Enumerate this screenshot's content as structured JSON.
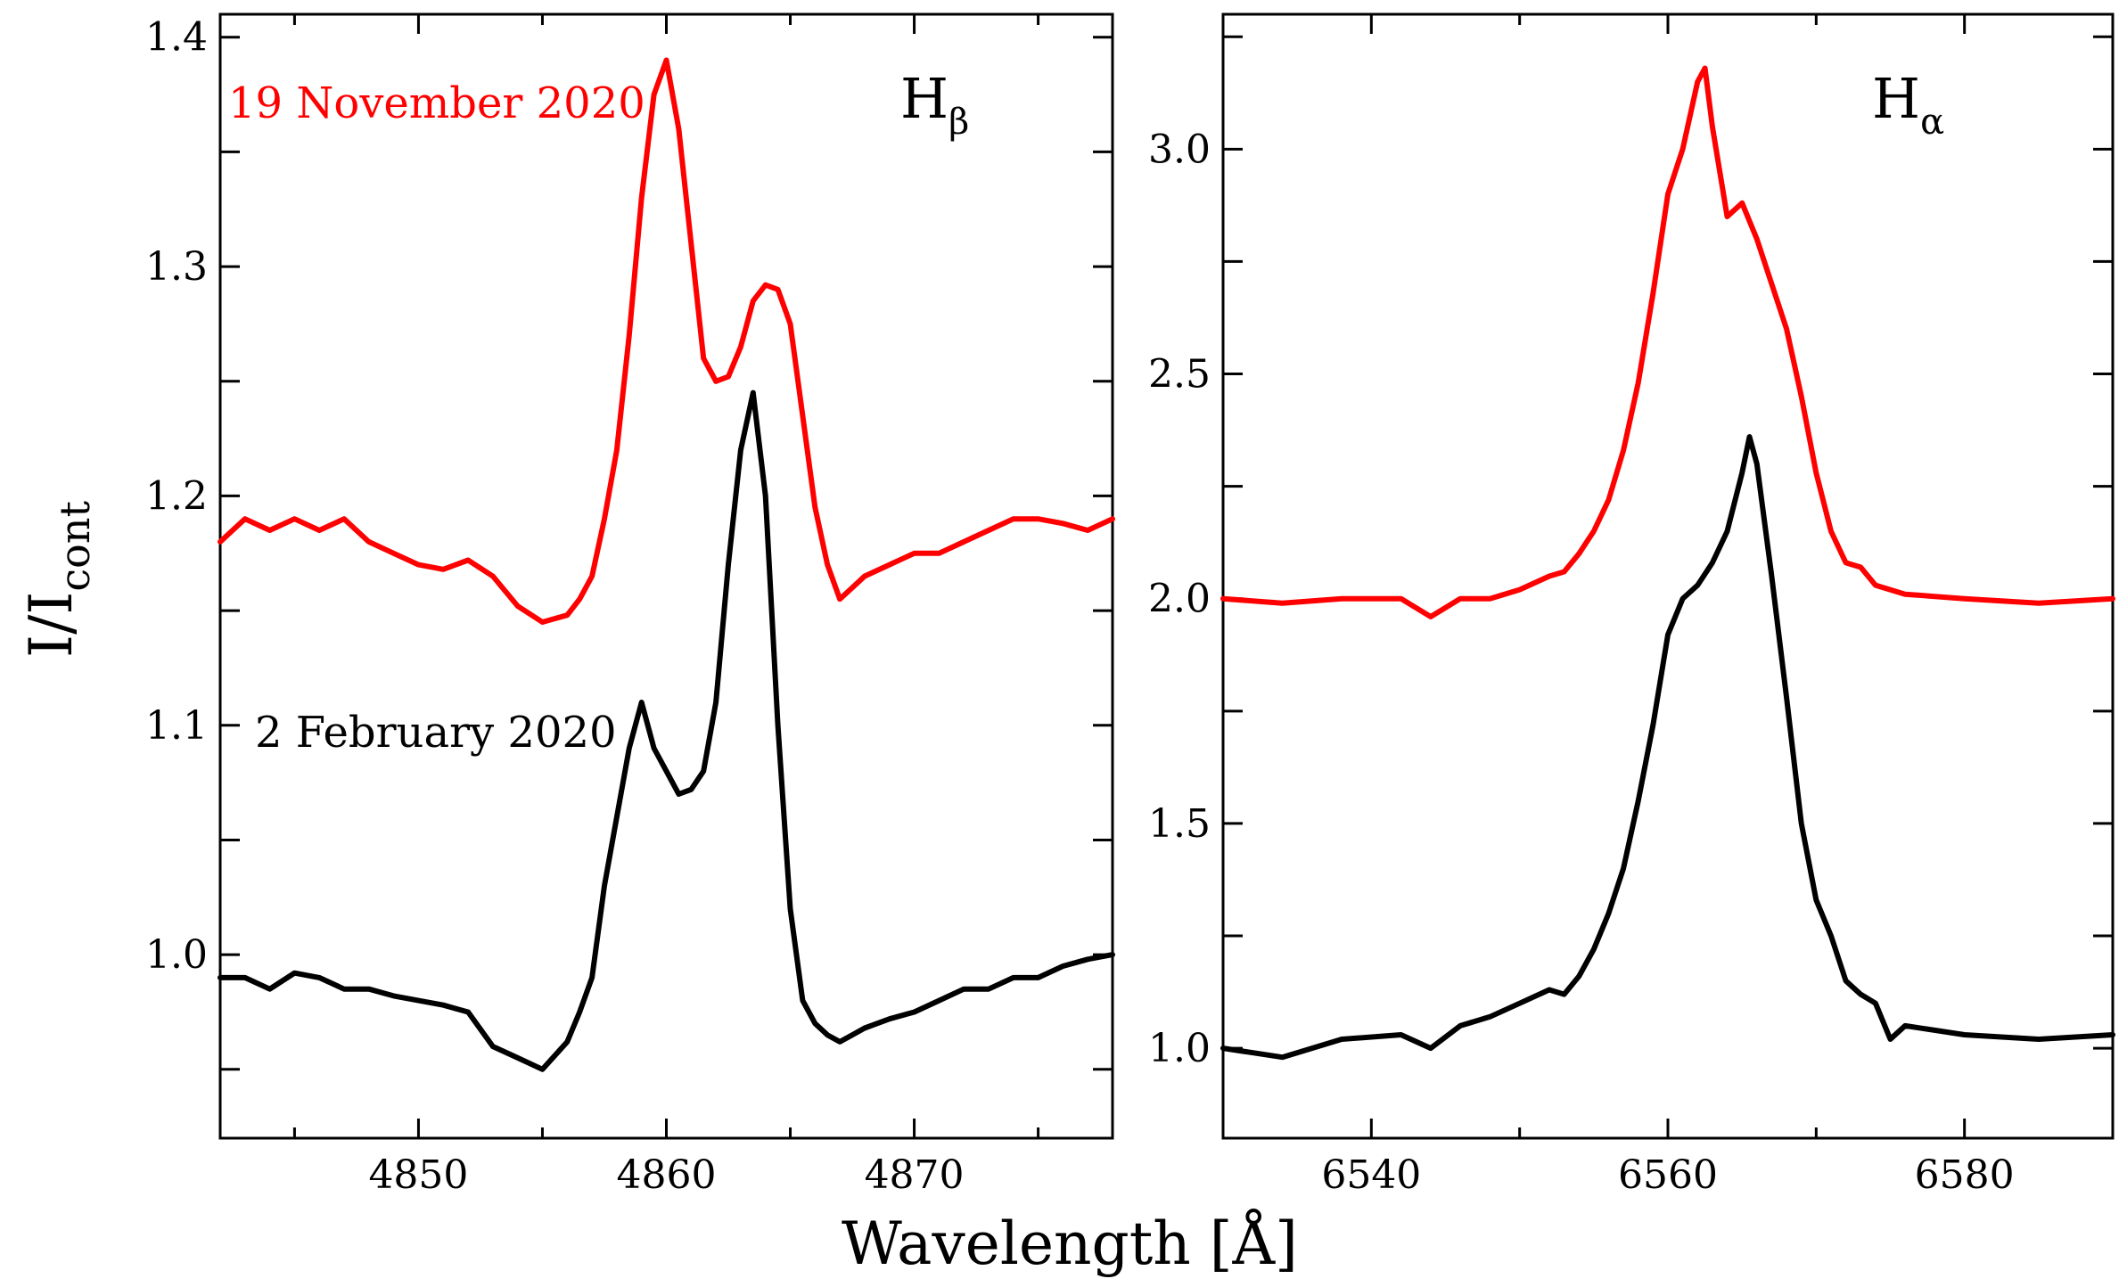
{
  "chart_data": [
    {
      "type": "line",
      "panel": "left",
      "title": "Hβ",
      "title_main": "H",
      "title_sub": "β",
      "xlabel": "Wavelength [Å]",
      "ylabel": "I/Icont",
      "ylabel_main": "I/I",
      "ylabel_sub": "cont",
      "xlim": [
        4842,
        4878
      ],
      "ylim": [
        0.92,
        1.41
      ],
      "xticks": [
        4850,
        4860,
        4870
      ],
      "xtick_labels": [
        "4850",
        "4860",
        "4870"
      ],
      "yticks": [
        1.0,
        1.1,
        1.2,
        1.3,
        1.4
      ],
      "ytick_labels": [
        "1.0",
        "1.1",
        "1.2",
        "1.3",
        "1.4"
      ],
      "grid": false,
      "series": [
        {
          "name": "19 November 2020",
          "color": "#ff0000",
          "x": [
            4842,
            4843,
            4844,
            4845,
            4846,
            4847,
            4848,
            4849,
            4850,
            4851,
            4852,
            4853,
            4854,
            4855,
            4856,
            4856.5,
            4857,
            4857.5,
            4858,
            4858.5,
            4859,
            4859.5,
            4860,
            4860.5,
            4861,
            4861.5,
            4862,
            4862.5,
            4863,
            4863.5,
            4864,
            4864.5,
            4865,
            4865.5,
            4866,
            4866.5,
            4867,
            4867.5,
            4868,
            4869,
            4870,
            4871,
            4872,
            4873,
            4874,
            4875,
            4876,
            4877,
            4878
          ],
          "y": [
            1.18,
            1.19,
            1.185,
            1.19,
            1.185,
            1.19,
            1.18,
            1.175,
            1.17,
            1.168,
            1.172,
            1.165,
            1.152,
            1.145,
            1.148,
            1.155,
            1.165,
            1.19,
            1.22,
            1.27,
            1.33,
            1.375,
            1.39,
            1.36,
            1.31,
            1.26,
            1.25,
            1.252,
            1.265,
            1.285,
            1.292,
            1.29,
            1.275,
            1.235,
            1.195,
            1.17,
            1.155,
            1.16,
            1.165,
            1.17,
            1.175,
            1.175,
            1.18,
            1.185,
            1.19,
            1.19,
            1.188,
            1.185,
            1.19
          ]
        },
        {
          "name": "2 February 2020",
          "color": "#000000",
          "x": [
            4842,
            4843,
            4844,
            4845,
            4846,
            4847,
            4848,
            4849,
            4850,
            4851,
            4852,
            4853,
            4854,
            4855,
            4856,
            4856.5,
            4857,
            4857.5,
            4858,
            4858.5,
            4859,
            4859.5,
            4860,
            4860.5,
            4861,
            4861.5,
            4862,
            4862.5,
            4863,
            4863.5,
            4864,
            4864.5,
            4865,
            4865.5,
            4866,
            4866.5,
            4867,
            4867.5,
            4868,
            4869,
            4870,
            4871,
            4872,
            4873,
            4874,
            4875,
            4876,
            4877,
            4878
          ],
          "y": [
            0.99,
            0.99,
            0.985,
            0.992,
            0.99,
            0.985,
            0.985,
            0.982,
            0.98,
            0.978,
            0.975,
            0.96,
            0.955,
            0.95,
            0.962,
            0.975,
            0.99,
            1.03,
            1.06,
            1.09,
            1.11,
            1.09,
            1.08,
            1.07,
            1.072,
            1.08,
            1.11,
            1.17,
            1.22,
            1.245,
            1.2,
            1.1,
            1.02,
            0.98,
            0.97,
            0.965,
            0.962,
            0.965,
            0.968,
            0.972,
            0.975,
            0.98,
            0.985,
            0.985,
            0.99,
            0.99,
            0.995,
            0.998,
            1.0
          ]
        }
      ]
    },
    {
      "type": "line",
      "panel": "right",
      "title": "Hα",
      "title_main": "H",
      "title_sub": "α",
      "xlim": [
        6530,
        6590
      ],
      "ylim": [
        0.8,
        3.3
      ],
      "xticks": [
        6540,
        6560,
        6580
      ],
      "xtick_labels": [
        "6540",
        "6560",
        "6580"
      ],
      "yticks": [
        1.0,
        1.5,
        2.0,
        2.5,
        3.0
      ],
      "ytick_labels": [
        "1.0",
        "1.5",
        "2.0",
        "2.5",
        "3.0"
      ],
      "grid": false,
      "series": [
        {
          "name": "19 November 2020",
          "color": "#ff0000",
          "x": [
            6530,
            6534,
            6538,
            6542,
            6544,
            6546,
            6548,
            6550,
            6552,
            6553,
            6554,
            6555,
            6556,
            6557,
            6558,
            6559,
            6560,
            6561,
            6562,
            6562.5,
            6563,
            6564,
            6565,
            6566,
            6567,
            6568,
            6569,
            6570,
            6571,
            6572,
            6573,
            6574,
            6576,
            6580,
            6585,
            6590
          ],
          "y": [
            2.0,
            1.99,
            2.0,
            2.0,
            1.96,
            2.0,
            2.0,
            2.02,
            2.05,
            2.06,
            2.1,
            2.15,
            2.22,
            2.33,
            2.48,
            2.68,
            2.9,
            3.0,
            3.15,
            3.18,
            3.05,
            2.85,
            2.88,
            2.8,
            2.7,
            2.6,
            2.45,
            2.28,
            2.15,
            2.08,
            2.07,
            2.03,
            2.01,
            2.0,
            1.99,
            2.0
          ]
        },
        {
          "name": "2 February 2020",
          "color": "#000000",
          "x": [
            6530,
            6534,
            6538,
            6542,
            6544,
            6546,
            6548,
            6550,
            6552,
            6553,
            6554,
            6555,
            6556,
            6557,
            6558,
            6559,
            6560,
            6561,
            6562,
            6563,
            6564,
            6565,
            6565.5,
            6566,
            6567,
            6568,
            6569,
            6570,
            6571,
            6572,
            6573,
            6574,
            6575,
            6576,
            6580,
            6585,
            6590
          ],
          "y": [
            1.0,
            0.98,
            1.02,
            1.03,
            1.0,
            1.05,
            1.07,
            1.1,
            1.13,
            1.12,
            1.16,
            1.22,
            1.3,
            1.4,
            1.55,
            1.72,
            1.92,
            2.0,
            2.03,
            2.08,
            2.15,
            2.28,
            2.36,
            2.3,
            2.05,
            1.78,
            1.5,
            1.33,
            1.25,
            1.15,
            1.12,
            1.1,
            1.02,
            1.05,
            1.03,
            1.02,
            1.03
          ]
        }
      ]
    }
  ],
  "annotations": {
    "red_label": "19 November 2020",
    "black_label": "2 February 2020"
  }
}
